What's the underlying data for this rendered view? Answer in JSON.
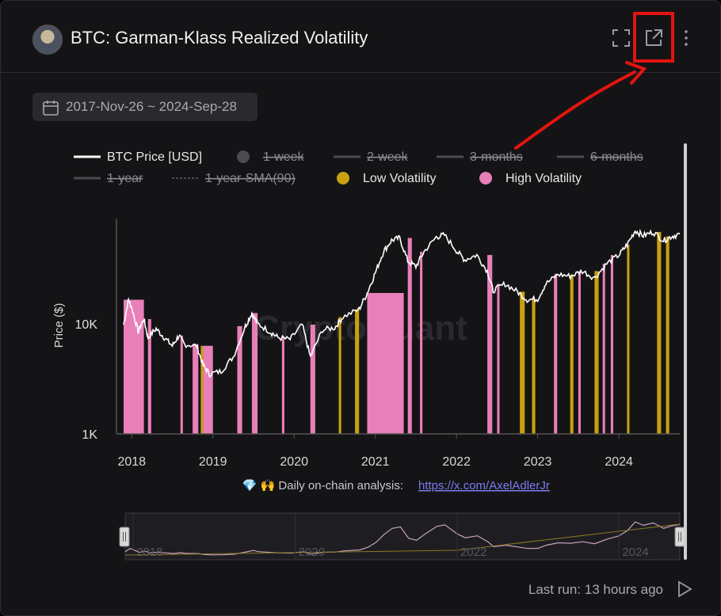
{
  "header": {
    "title": "BTC: Garman-Klass Realized Volatility",
    "icons": [
      "fullscreen-icon",
      "external-link-icon",
      "more-vertical-icon"
    ]
  },
  "date_range": {
    "label": "2017-Nov-26 ~ 2024-Sep-28"
  },
  "footer": {
    "last_run": "Last run: 13 hours ago"
  },
  "watermark": "CryptoQuant",
  "attribution": {
    "prefix": "💎 🙌 Daily on-chain analysis: ",
    "link_text": "https://x.com/AxelAdlerJr"
  },
  "colors": {
    "price": "#ffffff",
    "low_vol": "#c9a010",
    "high_vol": "#e97fb8",
    "disabled": "#4a4a50",
    "annotation": "#e3140f"
  },
  "chart_data": {
    "type": "line",
    "ylabel": "Price ($)",
    "yscale": "log",
    "ylim": [
      1000,
      90000
    ],
    "yticks": [
      {
        "value": 1000,
        "label": "1K"
      },
      {
        "value": 10000,
        "label": "10K"
      }
    ],
    "xlim": [
      2017.9,
      2024.75
    ],
    "xticks": [
      "2018",
      "2019",
      "2020",
      "2021",
      "2022",
      "2023",
      "2024"
    ],
    "legend": [
      {
        "name": "BTC Price [USD]",
        "enabled": true,
        "style": "line-white"
      },
      {
        "name": "1-week",
        "enabled": false,
        "style": "dot"
      },
      {
        "name": "2-week",
        "enabled": false,
        "style": "line"
      },
      {
        "name": "3-months",
        "enabled": false,
        "style": "line"
      },
      {
        "name": "6-months",
        "enabled": false,
        "style": "line"
      },
      {
        "name": "1-year",
        "enabled": false,
        "style": "line"
      },
      {
        "name": "1-year-SMA(90)",
        "enabled": false,
        "style": "dashed"
      },
      {
        "name": "Low Volatility",
        "enabled": true,
        "style": "dot-gold"
      },
      {
        "name": "High Volatility",
        "enabled": true,
        "style": "dot-pink"
      }
    ],
    "legend_position": "top",
    "series": [
      {
        "name": "BTC Price [USD]",
        "points": [
          [
            2017.9,
            9800
          ],
          [
            2017.96,
            16500
          ],
          [
            2018.0,
            14000
          ],
          [
            2018.08,
            8500
          ],
          [
            2018.15,
            11000
          ],
          [
            2018.2,
            7500
          ],
          [
            2018.3,
            9000
          ],
          [
            2018.4,
            7500
          ],
          [
            2018.5,
            6300
          ],
          [
            2018.58,
            7800
          ],
          [
            2018.65,
            6500
          ],
          [
            2018.8,
            6300
          ],
          [
            2018.88,
            4200
          ],
          [
            2018.96,
            3500
          ],
          [
            2019.1,
            3700
          ],
          [
            2019.25,
            5000
          ],
          [
            2019.4,
            9500
          ],
          [
            2019.48,
            12500
          ],
          [
            2019.55,
            10000
          ],
          [
            2019.7,
            8500
          ],
          [
            2019.8,
            7500
          ],
          [
            2019.95,
            7200
          ],
          [
            2020.1,
            9800
          ],
          [
            2020.2,
            5000
          ],
          [
            2020.35,
            8800
          ],
          [
            2020.5,
            9200
          ],
          [
            2020.6,
            11500
          ],
          [
            2020.8,
            13500
          ],
          [
            2020.9,
            19000
          ],
          [
            2021.0,
            29000
          ],
          [
            2021.1,
            45000
          ],
          [
            2021.2,
            57000
          ],
          [
            2021.3,
            60000
          ],
          [
            2021.4,
            37000
          ],
          [
            2021.5,
            33000
          ],
          [
            2021.6,
            45000
          ],
          [
            2021.75,
            61000
          ],
          [
            2021.85,
            64000
          ],
          [
            2022.0,
            46000
          ],
          [
            2022.1,
            38000
          ],
          [
            2022.25,
            42000
          ],
          [
            2022.38,
            30000
          ],
          [
            2022.45,
            20000
          ],
          [
            2022.6,
            23000
          ],
          [
            2022.75,
            19500
          ],
          [
            2022.87,
            16500
          ],
          [
            2023.0,
            16800
          ],
          [
            2023.1,
            23000
          ],
          [
            2023.25,
            28000
          ],
          [
            2023.4,
            27000
          ],
          [
            2023.55,
            30000
          ],
          [
            2023.7,
            26000
          ],
          [
            2023.85,
            35000
          ],
          [
            2024.0,
            42000
          ],
          [
            2024.1,
            52000
          ],
          [
            2024.2,
            70000
          ],
          [
            2024.3,
            63000
          ],
          [
            2024.42,
            68000
          ],
          [
            2024.55,
            57000
          ],
          [
            2024.65,
            62000
          ],
          [
            2024.75,
            65000
          ]
        ]
      }
    ],
    "low_volatility_periods": [
      [
        2018.85,
        2018.88
      ],
      [
        2020.55,
        2020.58
      ],
      [
        2020.75,
        2020.8
      ],
      [
        2022.78,
        2022.84
      ],
      [
        2022.93,
        2022.97
      ],
      [
        2023.4,
        2023.44
      ],
      [
        2023.7,
        2023.75
      ],
      [
        2024.1,
        2024.13
      ],
      [
        2024.47,
        2024.52
      ],
      [
        2024.58,
        2024.62
      ]
    ],
    "high_volatility_periods": [
      [
        2017.9,
        2018.15
      ],
      [
        2018.2,
        2018.24
      ],
      [
        2018.6,
        2018.63
      ],
      [
        2018.75,
        2018.82
      ],
      [
        2018.88,
        2019.0
      ],
      [
        2019.3,
        2019.36
      ],
      [
        2019.48,
        2019.55
      ],
      [
        2019.85,
        2019.88
      ],
      [
        2020.2,
        2020.26
      ],
      [
        2020.9,
        2021.35
      ],
      [
        2021.4,
        2021.45
      ],
      [
        2021.55,
        2021.58
      ],
      [
        2022.38,
        2022.44
      ],
      [
        2022.5,
        2022.53
      ],
      [
        2023.2,
        2023.24
      ],
      [
        2023.5,
        2023.53
      ],
      [
        2023.8,
        2023.83
      ],
      [
        2023.9,
        2023.93
      ]
    ],
    "navigator": {
      "xticks": [
        "2018",
        "2020",
        "2022",
        "2024"
      ]
    }
  }
}
